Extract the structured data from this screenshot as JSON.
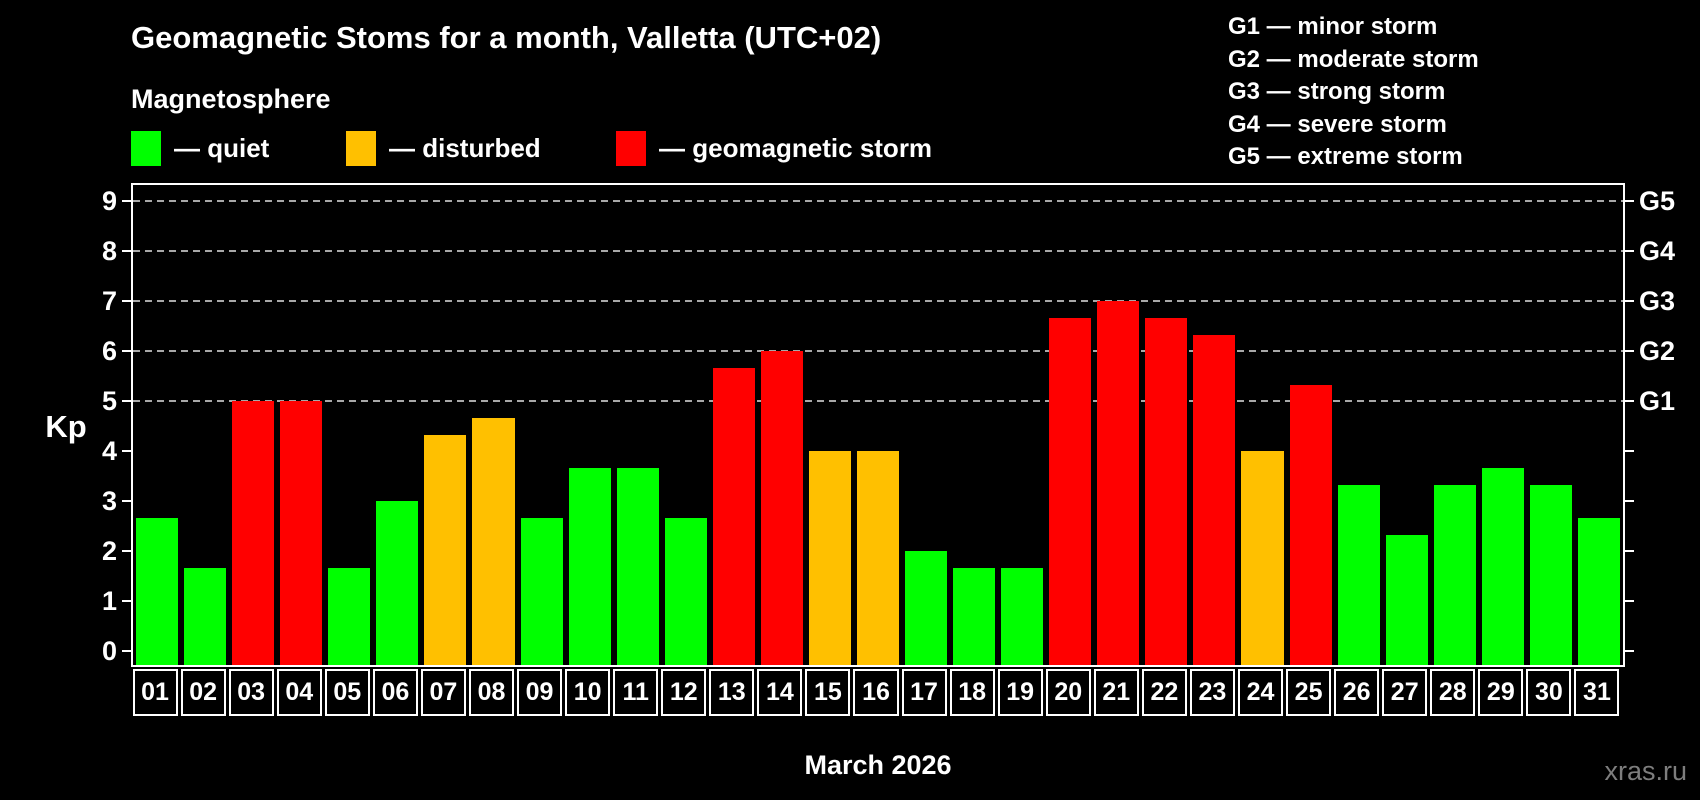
{
  "title": "Geomagnetic Stoms for a month, Valletta (UTC+02)",
  "subtitle": "Magnetosphere",
  "legend": {
    "items": [
      {
        "key": "quiet",
        "label": "— quiet",
        "color": "#00ff00"
      },
      {
        "key": "disturbed",
        "label": "— disturbed",
        "color": "#ffc000"
      },
      {
        "key": "storm",
        "label": "— geomagnetic storm",
        "color": "#ff0000"
      }
    ]
  },
  "storm_scale_legend": [
    {
      "level": "G1",
      "label": "G1 — minor storm"
    },
    {
      "level": "G2",
      "label": "G2 — moderate storm"
    },
    {
      "level": "G3",
      "label": "G3 — strong storm"
    },
    {
      "level": "G4",
      "label": "G4 — severe storm"
    },
    {
      "level": "G5",
      "label": "G5 — extreme storm"
    }
  ],
  "chart_data": {
    "type": "bar",
    "title": "Geomagnetic Stoms for a month, Valletta (UTC+02)",
    "xlabel": "March 2026",
    "ylabel": "Kp",
    "ylim": [
      -0.33,
      9.37
    ],
    "yticks": [
      0,
      1,
      2,
      3,
      4,
      5,
      6,
      7,
      8,
      9
    ],
    "gridlines_at": [
      5,
      6,
      7,
      8,
      9
    ],
    "grid": "dashed, horizontal only",
    "legend_position": "top-left",
    "right_axis": [
      {
        "kp": 5,
        "g": "G1"
      },
      {
        "kp": 6,
        "g": "G2"
      },
      {
        "kp": 7,
        "g": "G3"
      },
      {
        "kp": 8,
        "g": "G4"
      },
      {
        "kp": 9,
        "g": "G5"
      }
    ],
    "categories": [
      "01",
      "02",
      "03",
      "04",
      "05",
      "06",
      "07",
      "08",
      "09",
      "10",
      "11",
      "12",
      "13",
      "14",
      "15",
      "16",
      "17",
      "18",
      "19",
      "20",
      "21",
      "22",
      "23",
      "24",
      "25",
      "26",
      "27",
      "28",
      "29",
      "30",
      "31"
    ],
    "values": [
      2.67,
      1.67,
      5.0,
      5.0,
      1.67,
      3.0,
      4.33,
      4.67,
      2.67,
      3.67,
      3.67,
      2.67,
      5.67,
      6.0,
      4.0,
      4.0,
      2.0,
      1.67,
      1.67,
      6.67,
      7.0,
      6.67,
      6.33,
      4.0,
      5.33,
      3.33,
      2.33,
      3.33,
      3.67,
      3.33,
      2.67
    ],
    "levels": [
      "quiet",
      "quiet",
      "storm",
      "storm",
      "quiet",
      "quiet",
      "disturbed",
      "disturbed",
      "quiet",
      "quiet",
      "quiet",
      "quiet",
      "storm",
      "storm",
      "disturbed",
      "disturbed",
      "quiet",
      "quiet",
      "quiet",
      "storm",
      "storm",
      "storm",
      "storm",
      "disturbed",
      "storm",
      "quiet",
      "quiet",
      "quiet",
      "quiet",
      "quiet",
      "quiet"
    ]
  },
  "watermark": "xras.ru",
  "colors": {
    "quiet": "#00ff00",
    "disturbed": "#ffc000",
    "storm": "#ff0000",
    "background": "#000000",
    "text": "#ffffff",
    "grid": "#a8a8a8",
    "axis": "#ffffff",
    "watermark": "#7d7d7d"
  }
}
